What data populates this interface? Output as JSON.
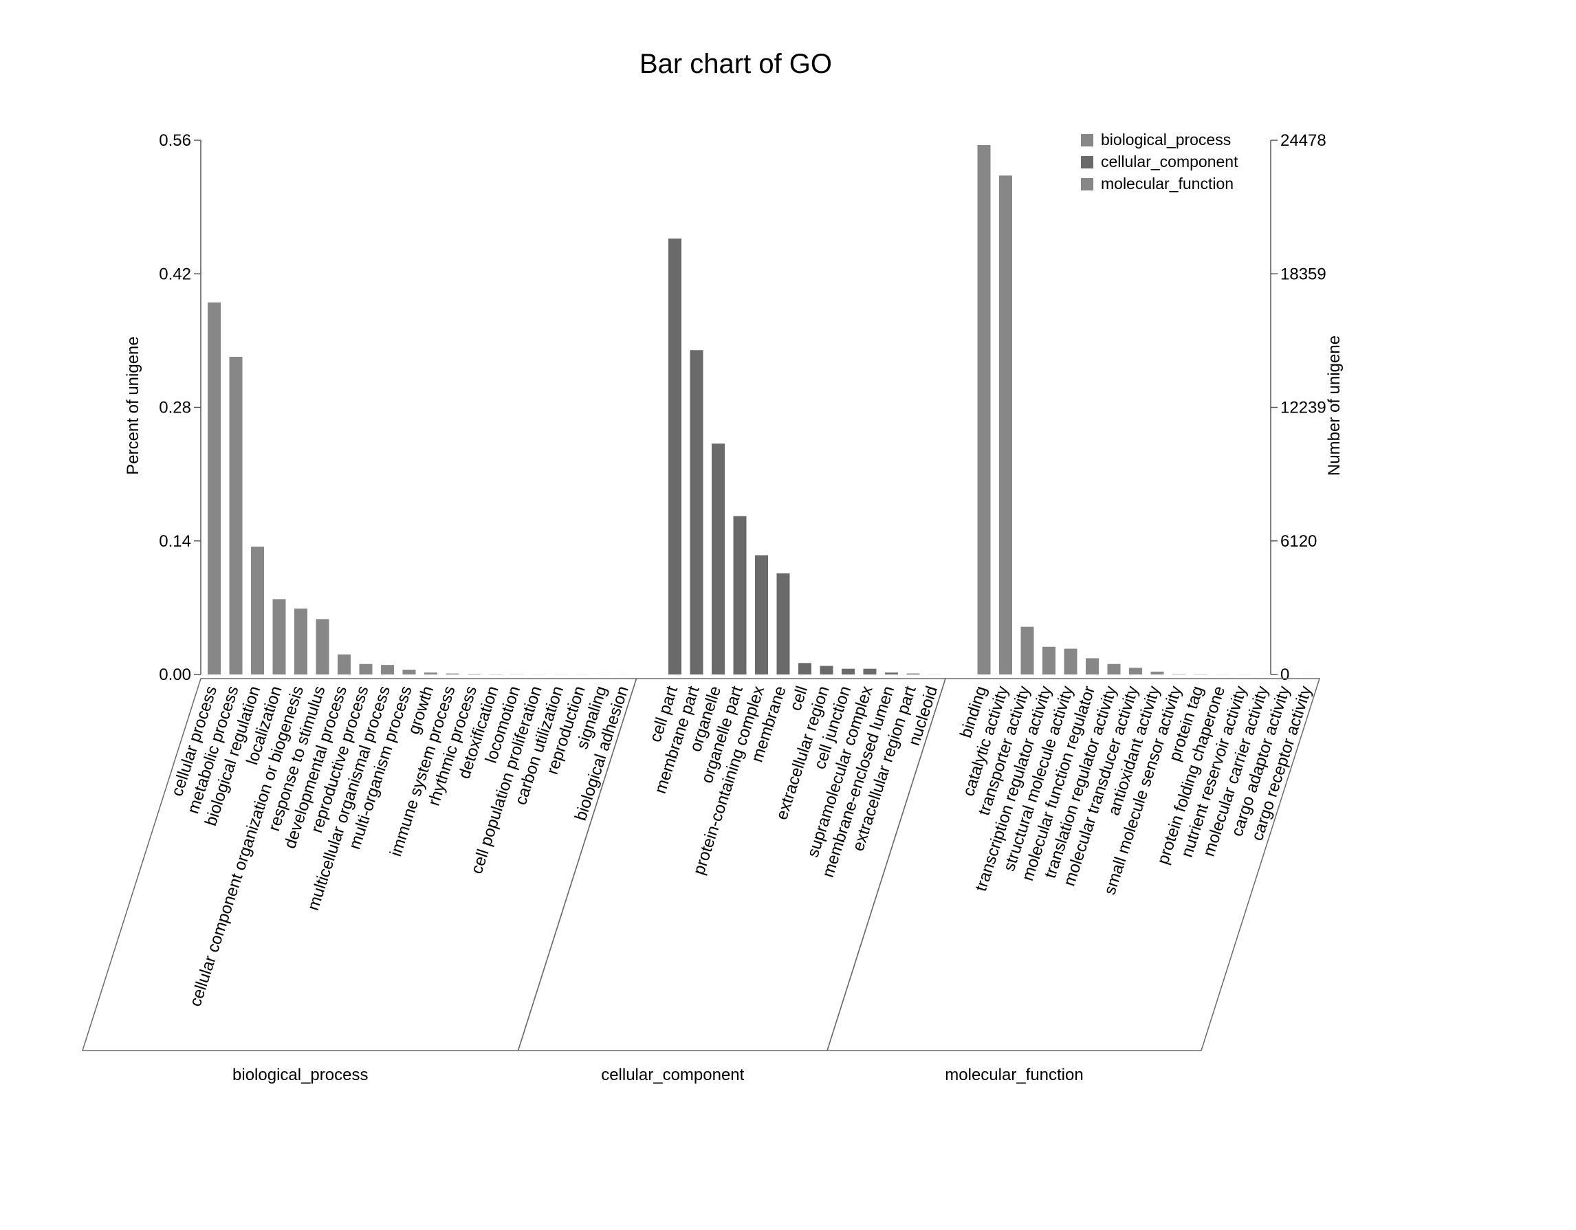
{
  "chart_data": {
    "type": "bar",
    "title": "Bar chart of GO",
    "ylabel_left": "Percent of unigene",
    "ylabel_right": "Number of unigene",
    "ylim_left": [
      0,
      0.56
    ],
    "ylim_right": [
      0,
      24478
    ],
    "left_ticks": [
      "0.00",
      "0.14",
      "0.28",
      "0.42",
      "0.56"
    ],
    "right_ticks": [
      "0",
      "6120",
      "12239",
      "18359",
      "24478"
    ],
    "legend_position": "top-right",
    "colors": {
      "biological_process": "#878787",
      "cellular_component": "#6a6a6a",
      "molecular_function": "#878787"
    },
    "groups": [
      {
        "name": "biological_process",
        "categories": [
          "cellular process",
          "metabolic process",
          "biological regulation",
          "localization",
          "cellular component organization or biogenesis",
          "response to stimulus",
          "developmental process",
          "reproductive process",
          "multicellular organismal process",
          "multi-organism process",
          "growth",
          "immune system process",
          "rhythmic process",
          "detoxification",
          "locomotion",
          "cell population proliferation",
          "carbon utilization",
          "reproduction",
          "signaling",
          "biological adhesion"
        ],
        "values": [
          0.39,
          0.333,
          0.134,
          0.079,
          0.069,
          0.058,
          0.021,
          0.011,
          0.01,
          0.005,
          0.002,
          0.001,
          0.0005,
          0.0003,
          0.0002,
          0.0001,
          0.0001,
          0.0001,
          5e-05,
          5e-05
        ]
      },
      {
        "name": "cellular_component",
        "categories": [
          "cell part",
          "membrane part",
          "organelle",
          "organelle part",
          "protein-containing complex",
          "membrane",
          "cell",
          "extracellular region",
          "cell junction",
          "supramolecular complex",
          "membrane-enclosed lumen",
          "extracellular region part",
          "nucleoid"
        ],
        "values": [
          0.457,
          0.34,
          0.242,
          0.166,
          0.125,
          0.106,
          0.012,
          0.009,
          0.006,
          0.006,
          0.002,
          0.001,
          0.0001
        ]
      },
      {
        "name": "molecular_function",
        "categories": [
          "binding",
          "catalytic activity",
          "transporter activity",
          "transcription regulator activity",
          "structural molecule activity",
          "molecular function regulator",
          "translation regulator activity",
          "molecular transducer activity",
          "antioxidant activity",
          "small molecule sensor activity",
          "protein tag",
          "protein folding chaperone",
          "nutrient reservoir activity",
          "molecular carrier activity",
          "cargo adaptor activity",
          "cargo receptor activity"
        ],
        "values": [
          0.555,
          0.523,
          0.05,
          0.029,
          0.027,
          0.017,
          0.011,
          0.007,
          0.003,
          0.0004,
          0.0003,
          0.0001,
          0.0001,
          5e-05,
          5e-05,
          5e-05
        ]
      }
    ]
  }
}
